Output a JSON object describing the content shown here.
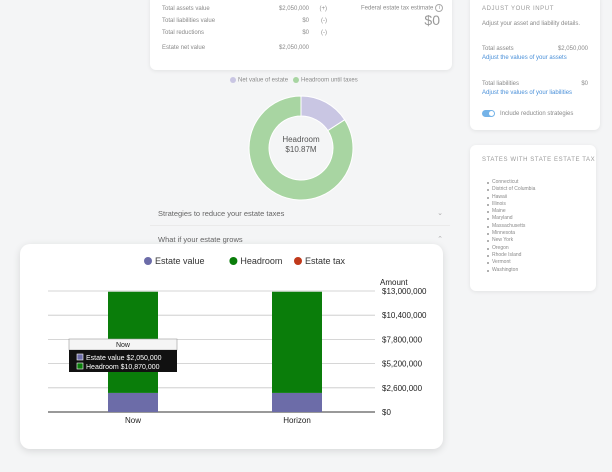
{
  "summary": {
    "rows": [
      {
        "label": "Total assets value",
        "value": "$2,050,000",
        "op": "(+)"
      },
      {
        "label": "Total liabilities value",
        "value": "$0",
        "op": "(-)"
      },
      {
        "label": "Total reductions",
        "value": "$0",
        "op": "(-)"
      },
      {
        "label": "Estate net value",
        "value": "$2,050,000",
        "op": ""
      }
    ],
    "federal_label": "Federal estate tax estimate",
    "federal_info": "i",
    "federal_value": "$0"
  },
  "adjust_panel": {
    "title": "ADJUST YOUR INPUT",
    "subtitle": "Adjust your asset and liability details.",
    "assets_label": "Total assets",
    "assets_value": "$2,050,000",
    "assets_link": "Adjust the values of your assets",
    "liabilities_label": "Total liabilities",
    "liabilities_value": "$0",
    "liabilities_link": "Adjust the values of your liabilities",
    "toggle_label": "Include reduction strategies",
    "toggle_on": true
  },
  "states_panel": {
    "title": "STATES WITH STATE ESTATE TAX",
    "states": [
      "Connecticut",
      "District of Columbia",
      "Hawaii",
      "Illinois",
      "Maine",
      "Maryland",
      "Massachusetts",
      "Minnesota",
      "New York",
      "Oregon",
      "Rhode Island",
      "Vermont",
      "Washington"
    ]
  },
  "donut": {
    "legend": [
      {
        "name": "Net value of estate",
        "color": "#c9c6e3"
      },
      {
        "name": "Headroom until taxes",
        "color": "#a8d5a2"
      }
    ],
    "center_title": "Headroom",
    "center_value": "$10.87M",
    "slices": [
      {
        "name": "Net value of estate",
        "value": 2050000
      },
      {
        "name": "Headroom until taxes",
        "value": 10870000
      }
    ]
  },
  "accordions": [
    {
      "label": "Strategies to reduce your estate taxes"
    },
    {
      "label": "What if your estate grows"
    }
  ],
  "chart_data": {
    "type": "bar",
    "stacked": true,
    "categories": [
      "Now",
      "Horizon"
    ],
    "series": [
      {
        "name": "Estate value",
        "color": "#6c6ca8",
        "values": [
          2050000,
          2050000
        ]
      },
      {
        "name": "Headroom",
        "color": "#0a7d0a",
        "values": [
          10870000,
          10870000
        ]
      },
      {
        "name": "Estate tax",
        "color": "#c0391b",
        "values": [
          0,
          0
        ]
      }
    ],
    "ylabel": "Amount",
    "ylim": [
      0,
      13000000
    ],
    "yticks": [
      0,
      2600000,
      5200000,
      7800000,
      10400000,
      13000000
    ],
    "ytick_labels": [
      "$0",
      "$2,600,000",
      "$5,200,000",
      "$7,800,000",
      "$10,400,000",
      "$13,000,000"
    ],
    "legend_position": "top",
    "grid": true,
    "tooltip": {
      "title": "Now",
      "lines": [
        "Estate value $2,050,000",
        "Headroom $10,870,000"
      ]
    }
  }
}
